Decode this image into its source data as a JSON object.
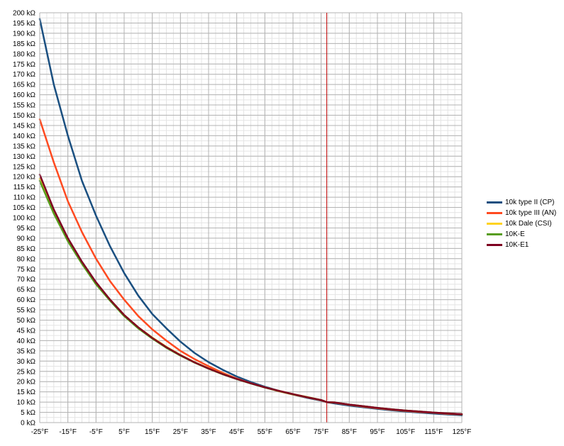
{
  "chart_data": {
    "type": "line",
    "title": "",
    "xlabel": "",
    "ylabel": "",
    "xlim": [
      -25,
      125
    ],
    "ylim": [
      0,
      200
    ],
    "x_ticks": [
      -25,
      -15,
      -5,
      5,
      15,
      25,
      35,
      45,
      55,
      65,
      75,
      85,
      95,
      105,
      115,
      125
    ],
    "x_tick_labels": [
      "-25°F",
      "-15°F",
      "-5°F",
      "5°F",
      "15°F",
      "25°F",
      "35°F",
      "45°F",
      "55°F",
      "65°F",
      "75°F",
      "85°F",
      "95°F",
      "105°F",
      "115°F",
      "125°F"
    ],
    "y_ticks": [
      0,
      5,
      10,
      15,
      20,
      25,
      30,
      35,
      40,
      45,
      50,
      55,
      60,
      65,
      70,
      75,
      80,
      85,
      90,
      95,
      100,
      105,
      110,
      115,
      120,
      125,
      130,
      135,
      140,
      145,
      150,
      155,
      160,
      165,
      170,
      175,
      180,
      185,
      190,
      195,
      200
    ],
    "y_tick_unit": "kΩ",
    "grid": true,
    "reference_line": {
      "x": 77,
      "color": "#c00000"
    },
    "legend_position": "right",
    "series": [
      {
        "name": "10k type II (CP)",
        "color": "#1a4f80",
        "x": [
          -25,
          -20,
          -15,
          -10,
          -5,
          0,
          5,
          10,
          15,
          20,
          25,
          30,
          35,
          40,
          45,
          50,
          55,
          60,
          65,
          70,
          75,
          77,
          80,
          85,
          90,
          95,
          100,
          105,
          110,
          115,
          120,
          125
        ],
        "values": [
          197,
          165,
          140,
          118,
          101,
          86,
          73,
          62,
          53,
          46,
          39.5,
          34,
          29.5,
          25.8,
          22.5,
          19.8,
          17.5,
          15.5,
          13.7,
          12.1,
          10.7,
          10,
          9.3,
          8.3,
          7.5,
          6.7,
          6.0,
          5.4,
          4.9,
          4.4,
          4.0,
          3.6
        ]
      },
      {
        "name": "10k type III (AN)",
        "color": "#ff4a20",
        "x": [
          -25,
          -20,
          -15,
          -10,
          -5,
          0,
          5,
          10,
          15,
          20,
          25,
          30,
          35,
          40,
          45,
          50,
          55,
          60,
          65,
          70,
          75,
          77,
          80,
          85,
          90,
          95,
          100,
          105,
          110,
          115,
          120,
          125
        ],
        "values": [
          148,
          127,
          108,
          93,
          80,
          69,
          60,
          52,
          45.5,
          40,
          35,
          31,
          27.5,
          24.3,
          21.5,
          19.2,
          17.2,
          15.3,
          13.7,
          12.3,
          10.9,
          10,
          9.7,
          8.7,
          7.8,
          7.0,
          6.3,
          5.7,
          5.2,
          4.8,
          4.3,
          4.0
        ]
      },
      {
        "name": "10k Dale (CSI)",
        "color": "#ffd320",
        "x": [
          -25,
          -20,
          -15,
          -10,
          -5,
          0,
          5,
          10,
          15,
          20,
          25,
          30,
          35,
          40,
          45,
          50,
          55,
          60,
          65,
          70,
          75,
          77,
          80,
          85,
          90,
          95,
          100,
          105,
          110,
          115,
          120,
          125
        ],
        "values": [
          119,
          103,
          89,
          78,
          68,
          60,
          52.5,
          46.5,
          41.5,
          37,
          33,
          29.5,
          26.5,
          23.8,
          21.3,
          19.2,
          17.2,
          15.5,
          13.9,
          12.5,
          11.0,
          10,
          9.8,
          8.8,
          8.0,
          7.2,
          6.5,
          5.9,
          5.4,
          4.9,
          4.5,
          4.1
        ]
      },
      {
        "name": "10K-E",
        "color": "#579d1c",
        "x": [
          -25,
          -20,
          -15,
          -10,
          -5,
          0,
          5,
          10,
          15,
          20,
          25,
          30,
          35,
          40,
          45,
          50,
          55,
          60,
          65,
          70,
          75,
          77,
          80,
          85,
          90,
          95,
          100,
          105,
          110,
          115,
          120,
          125
        ],
        "values": [
          118,
          102,
          88.5,
          77.5,
          67.5,
          59.5,
          52,
          46,
          41,
          36.5,
          32.7,
          29.3,
          26.3,
          23.6,
          21.2,
          19.1,
          17.1,
          15.4,
          13.8,
          12.4,
          11.0,
          10,
          9.8,
          8.8,
          8.0,
          7.2,
          6.5,
          5.9,
          5.4,
          4.9,
          4.5,
          4.1
        ]
      },
      {
        "name": "10K-E1",
        "color": "#7e0021",
        "x": [
          -25,
          -20,
          -15,
          -10,
          -5,
          0,
          5,
          10,
          15,
          20,
          25,
          30,
          35,
          40,
          45,
          50,
          55,
          60,
          65,
          70,
          75,
          77,
          80,
          85,
          90,
          95,
          100,
          105,
          110,
          115,
          120,
          125
        ],
        "values": [
          121,
          104,
          90,
          78.5,
          68.5,
          60,
          52.5,
          46.5,
          41.3,
          36.8,
          32.9,
          29.4,
          26.4,
          23.7,
          21.3,
          19.2,
          17.2,
          15.5,
          13.9,
          12.4,
          11.0,
          10,
          9.8,
          8.8,
          8.0,
          7.2,
          6.5,
          5.9,
          5.4,
          4.9,
          4.5,
          4.1
        ]
      }
    ]
  }
}
